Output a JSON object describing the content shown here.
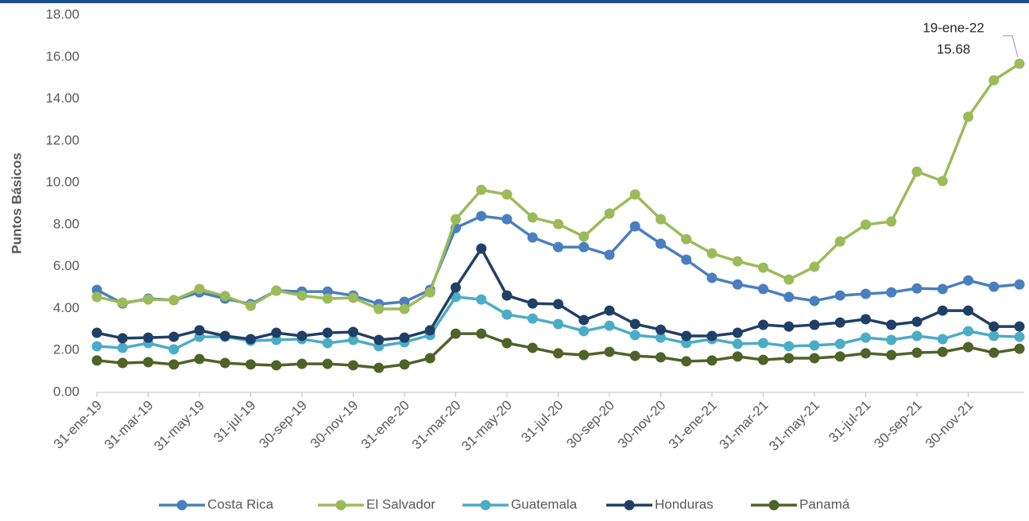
{
  "chart_data": {
    "type": "line",
    "y_label": "Puntos Básicos",
    "categories": [
      "31-ene-19",
      null,
      "31-mar-19",
      null,
      "31-may-19",
      null,
      "31-jul-19",
      null,
      "30-sep-19",
      null,
      "30-nov-19",
      null,
      "31-ene-20",
      null,
      "31-mar-20",
      null,
      "31-may-20",
      null,
      "31-jul-20",
      null,
      "30-sep-20",
      null,
      "30-nov-20",
      null,
      "31-ene-21",
      null,
      "31-mar-21",
      null,
      "31-may-21",
      null,
      "31-jul-21",
      null,
      "30-sep-21",
      null,
      "30-nov-21",
      null,
      null
    ],
    "ylim": [
      0,
      18
    ],
    "yticks": [
      {
        "value": 0,
        "label": "0.00"
      },
      {
        "value": 2,
        "label": "2.00"
      },
      {
        "value": 4,
        "label": "4.00"
      },
      {
        "value": 6,
        "label": "6.00"
      },
      {
        "value": 8,
        "label": "8.00"
      },
      {
        "value": 10,
        "label": "10.00"
      },
      {
        "value": 12,
        "label": "12.00"
      },
      {
        "value": 14,
        "label": "14.00"
      },
      {
        "value": 16,
        "label": "16.00"
      },
      {
        "value": 18,
        "label": "18.00"
      }
    ],
    "grid": false,
    "legend": "bottom",
    "series": [
      {
        "name": "Costa Rica",
        "color": "#4a7ebf",
        "values": [
          4.89,
          4.24,
          4.47,
          4.4,
          4.77,
          4.47,
          4.21,
          4.85,
          4.81,
          4.81,
          4.62,
          4.21,
          4.32,
          4.89,
          7.84,
          8.41,
          8.26,
          7.39,
          6.93,
          6.93,
          6.56,
          7.92,
          7.09,
          6.33,
          5.46,
          5.15,
          4.93,
          4.55,
          4.36,
          4.62,
          4.7,
          4.77,
          4.96,
          4.93,
          5.34,
          5.04,
          5.15
        ]
      },
      {
        "name": "El Salvador",
        "color": "#9bbb59",
        "values": [
          4.55,
          4.28,
          4.43,
          4.4,
          4.93,
          4.59,
          4.13,
          4.85,
          4.62,
          4.47,
          4.51,
          3.98,
          3.98,
          4.77,
          8.26,
          9.66,
          9.44,
          8.34,
          8.03,
          7.43,
          8.53,
          9.44,
          8.26,
          7.31,
          6.63,
          6.25,
          5.95,
          5.38,
          5.99,
          7.2,
          8.0,
          8.15,
          10.53,
          10.08,
          13.15,
          14.89,
          15.68
        ]
      },
      {
        "name": "Guatemala",
        "color": "#4bacc6",
        "values": [
          2.2,
          2.12,
          2.35,
          2.05,
          2.65,
          2.65,
          2.46,
          2.5,
          2.54,
          2.35,
          2.5,
          2.2,
          2.39,
          2.73,
          4.55,
          4.43,
          3.71,
          3.52,
          3.26,
          2.92,
          3.18,
          2.73,
          2.61,
          2.35,
          2.54,
          2.31,
          2.35,
          2.2,
          2.24,
          2.31,
          2.61,
          2.5,
          2.69,
          2.54,
          2.92,
          2.69,
          2.65
        ]
      },
      {
        "name": "Honduras",
        "color": "#203f66",
        "values": [
          2.84,
          2.58,
          2.61,
          2.65,
          2.96,
          2.69,
          2.54,
          2.84,
          2.69,
          2.84,
          2.88,
          2.5,
          2.61,
          2.96,
          5.0,
          6.86,
          4.62,
          4.24,
          4.21,
          3.45,
          3.9,
          3.26,
          2.99,
          2.69,
          2.69,
          2.84,
          3.22,
          3.14,
          3.22,
          3.33,
          3.49,
          3.22,
          3.37,
          3.9,
          3.9,
          3.14,
          3.14
        ]
      },
      {
        "name": "Panamá",
        "color": "#4f6228",
        "values": [
          1.52,
          1.4,
          1.44,
          1.33,
          1.59,
          1.4,
          1.33,
          1.29,
          1.36,
          1.36,
          1.29,
          1.17,
          1.33,
          1.63,
          2.8,
          2.8,
          2.35,
          2.12,
          1.86,
          1.78,
          1.93,
          1.74,
          1.67,
          1.48,
          1.52,
          1.71,
          1.55,
          1.63,
          1.63,
          1.71,
          1.86,
          1.78,
          1.89,
          1.93,
          2.16,
          1.89,
          2.08
        ]
      }
    ],
    "annotation": {
      "date": "19-ene-22",
      "value": 15.68
    }
  }
}
